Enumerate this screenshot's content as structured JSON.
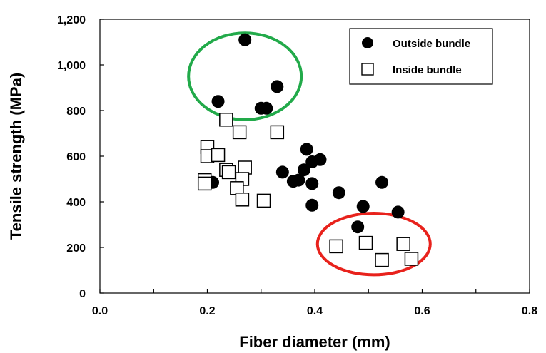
{
  "chart_data": {
    "type": "scatter",
    "xlabel": "Fiber diameter (mm)",
    "ylabel": "Tensile strength (MPa)",
    "xlim": [
      0.0,
      0.8
    ],
    "ylim": [
      0,
      1200
    ],
    "x_ticks": [
      "0.0",
      "0.2",
      "0.4",
      "0.6",
      "0.8"
    ],
    "y_ticks": [
      "0",
      "200",
      "400",
      "600",
      "800",
      "1,000",
      "1,200"
    ],
    "grid": false,
    "legend_position": "top-right",
    "series": [
      {
        "name": "Outside bundle",
        "marker": "filled-circle",
        "color": "#000000",
        "points": [
          [
            0.27,
            1110
          ],
          [
            0.22,
            840
          ],
          [
            0.33,
            905
          ],
          [
            0.3,
            810
          ],
          [
            0.31,
            810
          ],
          [
            0.385,
            630
          ],
          [
            0.41,
            585
          ],
          [
            0.395,
            575
          ],
          [
            0.38,
            540
          ],
          [
            0.34,
            530
          ],
          [
            0.36,
            490
          ],
          [
            0.37,
            495
          ],
          [
            0.395,
            480
          ],
          [
            0.21,
            485
          ],
          [
            0.445,
            440
          ],
          [
            0.525,
            485
          ],
          [
            0.395,
            385
          ],
          [
            0.49,
            380
          ],
          [
            0.555,
            355
          ],
          [
            0.48,
            290
          ]
        ]
      },
      {
        "name": "Inside bundle",
        "marker": "open-square",
        "color": "#000000",
        "points": [
          [
            0.235,
            760
          ],
          [
            0.26,
            705
          ],
          [
            0.33,
            705
          ],
          [
            0.2,
            640
          ],
          [
            0.2,
            600
          ],
          [
            0.22,
            605
          ],
          [
            0.235,
            540
          ],
          [
            0.24,
            530
          ],
          [
            0.27,
            550
          ],
          [
            0.265,
            500
          ],
          [
            0.195,
            495
          ],
          [
            0.195,
            480
          ],
          [
            0.255,
            460
          ],
          [
            0.265,
            410
          ],
          [
            0.305,
            405
          ],
          [
            0.44,
            205
          ],
          [
            0.495,
            220
          ],
          [
            0.525,
            145
          ],
          [
            0.565,
            215
          ],
          [
            0.58,
            150
          ]
        ]
      }
    ],
    "annotations": [
      {
        "type": "ellipse",
        "color": "#22aa4a",
        "cx": 0.27,
        "cy": 950,
        "rx": 0.105,
        "ry": 190
      },
      {
        "type": "ellipse",
        "color": "#e8221c",
        "cx": 0.51,
        "cy": 215,
        "rx": 0.105,
        "ry": 135
      }
    ]
  }
}
